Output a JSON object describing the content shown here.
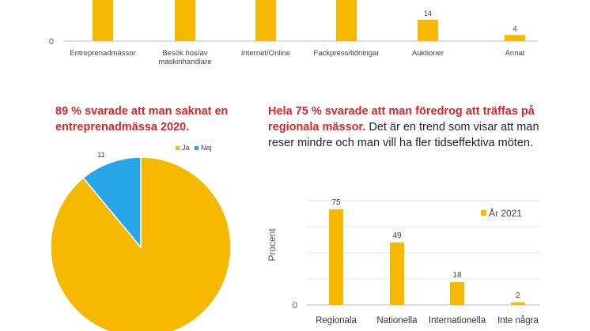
{
  "colors": {
    "bar": "#f7b800",
    "ja": "#f7b800",
    "nej": "#26a6e6",
    "grid": "#d9d9d9",
    "axis": "#bfbfbf",
    "heading_red": "#d9262a"
  },
  "left_heading": "89 % svarade att man saknat en entreprenadmässa 2020.",
  "right_heading": {
    "bold": "Hela 75 % svarade att man föredrog att träffas på regionala mässor.",
    "normal": " Det är en trend som visar att man reser mindre och man vill ha fler tidseffektiva möten."
  },
  "chart_data": [
    {
      "type": "bar",
      "categories": [
        "Entreprenadmässor",
        "Besök hos/av maskinhandlare",
        "Internet/Online",
        "Fackpress/tidningar",
        "Auktioner",
        "Annat"
      ],
      "values": [
        null,
        null,
        null,
        null,
        14,
        4
      ],
      "data_labels": [
        "",
        "",
        "",
        "",
        "14",
        "4"
      ],
      "y_tick_labels": [
        "0"
      ],
      "title": "",
      "xlabel": "",
      "ylabel": "",
      "note": "Top of chart cropped; first four bar values not visible"
    },
    {
      "type": "pie",
      "labels": [
        "Ja",
        "Nej"
      ],
      "values": [
        89,
        11
      ],
      "data_labels": [
        "",
        "11"
      ],
      "legend": [
        "Ja",
        "Nej"
      ],
      "legend_position": "top-right"
    },
    {
      "type": "bar",
      "categories": [
        "Regionala",
        "Nationella",
        "Internationella",
        "Inte några"
      ],
      "series": [
        {
          "name": "År 2021",
          "values": [
            75,
            49,
            18,
            2
          ]
        }
      ],
      "data_labels": [
        "75",
        "49",
        "18",
        "2"
      ],
      "y_tick_labels": [
        "0"
      ],
      "ylabel": "Procent",
      "ylim": [
        0,
        80
      ],
      "legend_position": "top-right"
    }
  ]
}
